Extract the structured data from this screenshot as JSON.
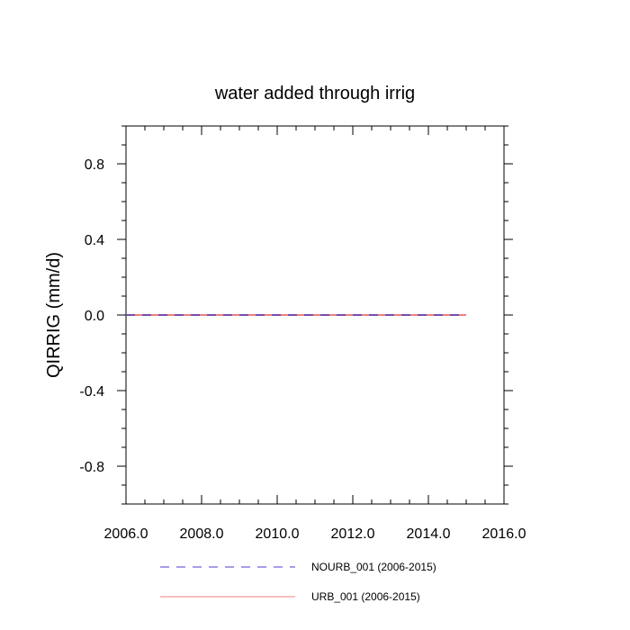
{
  "chart_data": {
    "type": "line",
    "title": "water added through irrig",
    "xlabel": "",
    "ylabel": "QIRRIG  (mm/d)",
    "xlim": [
      2006.0,
      2016.0
    ],
    "ylim": [
      -1.0,
      1.0
    ],
    "x_ticks": [
      2006.0,
      2008.0,
      2010.0,
      2012.0,
      2014.0,
      2016.0
    ],
    "x_tick_labels": [
      "2006.0",
      "2008.0",
      "2010.0",
      "2012.0",
      "2014.0",
      "2016.0"
    ],
    "y_ticks": [
      0.8,
      0.4,
      0.0,
      -0.4,
      -0.8
    ],
    "y_tick_labels": [
      "0.8",
      "0.4",
      "0.0",
      "-0.4",
      "-0.8"
    ],
    "grid": false,
    "legend_position": "bottom",
    "series": [
      {
        "name": "NOURB_001 (2006-2015)",
        "style": "dashed",
        "color": "#4b3cc8",
        "x": [
          2006,
          2007,
          2008,
          2009,
          2010,
          2011,
          2012,
          2013,
          2014,
          2015
        ],
        "y": [
          0,
          0,
          0,
          0,
          0,
          0,
          0,
          0,
          0,
          0
        ]
      },
      {
        "name": "URB_001 (2006-2015)",
        "style": "solid",
        "color": "#f08080",
        "x": [
          2006,
          2007,
          2008,
          2009,
          2010,
          2011,
          2012,
          2013,
          2014,
          2015
        ],
        "y": [
          0,
          0,
          0,
          0,
          0,
          0,
          0,
          0,
          0,
          0
        ]
      }
    ]
  }
}
